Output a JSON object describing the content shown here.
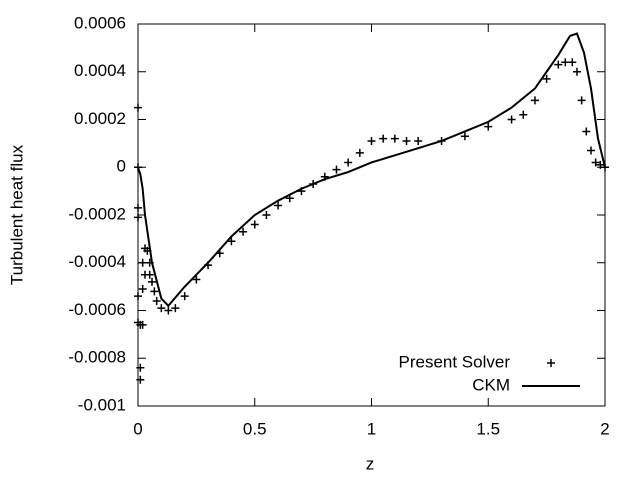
{
  "chart_data": {
    "type": "line",
    "xlabel": "z",
    "ylabel": "Turbulent heat flux",
    "xlim": [
      0,
      2
    ],
    "ylim": [
      -0.001,
      0.0006
    ],
    "xticks": [
      0,
      0.5,
      1,
      1.5,
      2
    ],
    "yticks": [
      -0.001,
      -0.0008,
      -0.0006,
      -0.0004,
      -0.0002,
      0,
      0.0002,
      0.0004,
      0.0006
    ],
    "legend": "bottom-right",
    "series": [
      {
        "name": "Present Solver",
        "color": "#000000",
        "style": "points",
        "x": [
          0,
          0,
          0,
          0,
          0,
          0,
          0.01,
          0.01,
          0.01,
          0.02,
          0.02,
          0.02,
          0.03,
          0.03,
          0.04,
          0.05,
          0.05,
          0.06,
          0.07,
          0.08,
          0.1,
          0.13,
          0.16,
          0.2,
          0.25,
          0.3,
          0.35,
          0.4,
          0.45,
          0.5,
          0.55,
          0.6,
          0.65,
          0.7,
          0.75,
          0.8,
          0.85,
          0.9,
          0.95,
          1.0,
          1.05,
          1.1,
          1.15,
          1.2,
          1.3,
          1.4,
          1.5,
          1.6,
          1.65,
          1.7,
          1.75,
          1.8,
          1.83,
          1.86,
          1.88,
          1.9,
          1.92,
          1.94,
          1.96,
          1.98,
          2
        ],
        "values": [
          0.00025,
          0,
          -0.00017,
          -0.00021,
          -0.00054,
          -0.00065,
          -0.00066,
          -0.00089,
          -0.00084,
          -0.00066,
          -0.00051,
          -0.0004,
          -0.00034,
          -0.00045,
          -0.00035,
          -0.0004,
          -0.00045,
          -0.00048,
          -0.00052,
          -0.00056,
          -0.00059,
          -0.0006,
          -0.00059,
          -0.00054,
          -0.00047,
          -0.00041,
          -0.00036,
          -0.00031,
          -0.00027,
          -0.00024,
          -0.0002,
          -0.00016,
          -0.00013,
          -0.0001,
          -7e-05,
          -4e-05,
          -1e-05,
          2e-05,
          6e-05,
          0.00011,
          0.00012,
          0.00012,
          0.00011,
          0.00011,
          0.00011,
          0.00013,
          0.00017,
          0.0002,
          0.00022,
          0.00028,
          0.00037,
          0.00043,
          0.00044,
          0.00044,
          0.0004,
          0.00028,
          0.00015,
          7e-05,
          2e-05,
          1e-05,
          0
        ]
      },
      {
        "name": "CKM",
        "color": "#000000",
        "style": "line",
        "x": [
          0,
          0.01,
          0.02,
          0.03,
          0.06,
          0.1,
          0.13,
          0.2,
          0.3,
          0.4,
          0.5,
          0.6,
          0.7,
          0.8,
          0.9,
          1,
          1.1,
          1.2,
          1.3,
          1.4,
          1.5,
          1.6,
          1.7,
          1.75,
          1.8,
          1.85,
          1.88,
          1.91,
          1.94,
          1.97,
          2
        ],
        "values": [
          0,
          -3e-05,
          -9e-05,
          -0.0002,
          -0.0004,
          -0.00055,
          -0.00058,
          -0.0005,
          -0.0004,
          -0.00029,
          -0.0002,
          -0.00014,
          -9e-05,
          -5e-05,
          -2e-05,
          2e-05,
          5e-05,
          8e-05,
          0.00011,
          0.00015,
          0.00019,
          0.00025,
          0.00033,
          0.0004,
          0.00047,
          0.00055,
          0.00056,
          0.00048,
          0.00033,
          0.00012,
          0
        ]
      }
    ]
  }
}
